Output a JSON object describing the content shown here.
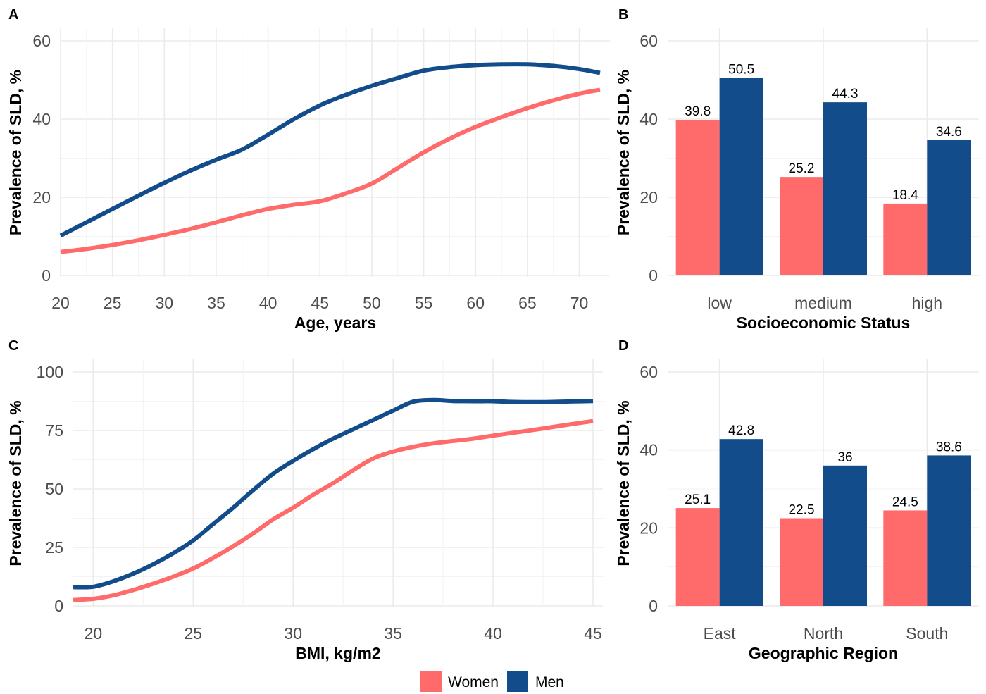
{
  "colors": {
    "women": "#FF6B6B",
    "men": "#124C8A",
    "grid": "#EBEBEB"
  },
  "legend": {
    "placement": "bottom",
    "items": [
      {
        "key": "women",
        "label": "Women"
      },
      {
        "key": "men",
        "label": "Men"
      }
    ]
  },
  "chart_data": [
    {
      "panel": "A",
      "type": "line",
      "xlabel": "Age, years",
      "ylabel": "Prevalence of SLD, %",
      "xlim": [
        20,
        72
      ],
      "ylim": [
        0,
        60
      ],
      "xticks": [
        20,
        25,
        30,
        35,
        40,
        45,
        50,
        55,
        60,
        65,
        70
      ],
      "yticks": [
        0,
        20,
        40,
        60
      ],
      "grid": true,
      "series": [
        {
          "key": "women",
          "name": "Women",
          "x": [
            20,
            22.5,
            25,
            27.5,
            30,
            32.5,
            35,
            37.5,
            40,
            42.5,
            45,
            47.5,
            50,
            52.5,
            55,
            57.5,
            60,
            62.5,
            65,
            67.5,
            70,
            72
          ],
          "y": [
            6,
            6.8,
            7.8,
            9,
            10.4,
            11.9,
            13.6,
            15.4,
            17,
            18.1,
            19,
            21,
            23.5,
            27.5,
            31.5,
            35,
            38,
            40.5,
            42.8,
            44.8,
            46.5,
            47.5
          ]
        },
        {
          "key": "men",
          "name": "Men",
          "x": [
            20,
            22.5,
            25,
            27.5,
            30,
            32.5,
            35,
            37.5,
            40,
            42.5,
            45,
            47.5,
            50,
            52.5,
            55,
            57.5,
            60,
            62.5,
            65,
            67.5,
            70,
            72
          ],
          "y": [
            10.2,
            13.6,
            17,
            20.4,
            23.7,
            26.8,
            29.6,
            32.2,
            36,
            40,
            43.5,
            46.2,
            48.5,
            50.5,
            52.4,
            53.3,
            53.8,
            54,
            54,
            53.6,
            52.8,
            51.8
          ]
        }
      ]
    },
    {
      "panel": "B",
      "type": "bar",
      "xlabel": "Socioeconomic Status",
      "ylabel": "Prevalence of SLD, %",
      "ylim": [
        0,
        60
      ],
      "yticks": [
        0,
        20,
        40,
        60
      ],
      "grid": true,
      "categories": [
        "low",
        "medium",
        "high"
      ],
      "series": [
        {
          "key": "women",
          "name": "Women",
          "values": [
            39.8,
            25.2,
            18.4
          ]
        },
        {
          "key": "men",
          "name": "Men",
          "values": [
            50.5,
            44.3,
            34.6
          ]
        }
      ]
    },
    {
      "panel": "C",
      "type": "line",
      "xlabel": "BMI, kg/m2",
      "ylabel": "Prevalence of SLD, %",
      "xlim": [
        19,
        45
      ],
      "ylim": [
        0,
        100
      ],
      "xticks": [
        20,
        25,
        30,
        35,
        40,
        45
      ],
      "yticks": [
        0,
        25,
        50,
        75,
        100
      ],
      "grid": true,
      "series": [
        {
          "key": "women",
          "name": "Women",
          "x": [
            19,
            20,
            21,
            22,
            23,
            24,
            25,
            26,
            27,
            28,
            29,
            30,
            31,
            32,
            33,
            34,
            35,
            36,
            37,
            38,
            39,
            40,
            41,
            42,
            43,
            44,
            45
          ],
          "y": [
            2.5,
            3,
            4.5,
            6.8,
            9.5,
            12.5,
            16,
            20.5,
            25.5,
            31,
            37,
            42,
            47.5,
            52.5,
            58,
            63,
            66,
            68,
            69.5,
            70.5,
            71.5,
            72.8,
            74,
            75.2,
            76.5,
            77.8,
            79
          ]
        },
        {
          "key": "men",
          "name": "Men",
          "x": [
            19,
            20,
            21,
            22,
            23,
            24,
            25,
            26,
            27,
            28,
            29,
            30,
            31,
            32,
            33,
            34,
            35,
            36,
            37,
            38,
            39,
            40,
            41,
            42,
            43,
            44,
            45
          ],
          "y": [
            8,
            8.2,
            10.5,
            13.8,
            17.8,
            22.5,
            28,
            35,
            42,
            49.5,
            56.5,
            62,
            67,
            71.5,
            75.5,
            79.5,
            83.5,
            87.3,
            88,
            87.6,
            87.5,
            87.5,
            87.2,
            87.1,
            87.2,
            87.4,
            87.6
          ]
        }
      ]
    },
    {
      "panel": "D",
      "type": "bar",
      "xlabel": "Geographic Region",
      "ylabel": "Prevalence of SLD, %",
      "ylim": [
        0,
        60
      ],
      "yticks": [
        0,
        20,
        40,
        60
      ],
      "grid": true,
      "categories": [
        "East",
        "North",
        "South"
      ],
      "series": [
        {
          "key": "women",
          "name": "Women",
          "values": [
            25.1,
            22.5,
            24.5
          ]
        },
        {
          "key": "men",
          "name": "Men",
          "values": [
            42.8,
            36,
            38.6
          ]
        }
      ]
    }
  ]
}
